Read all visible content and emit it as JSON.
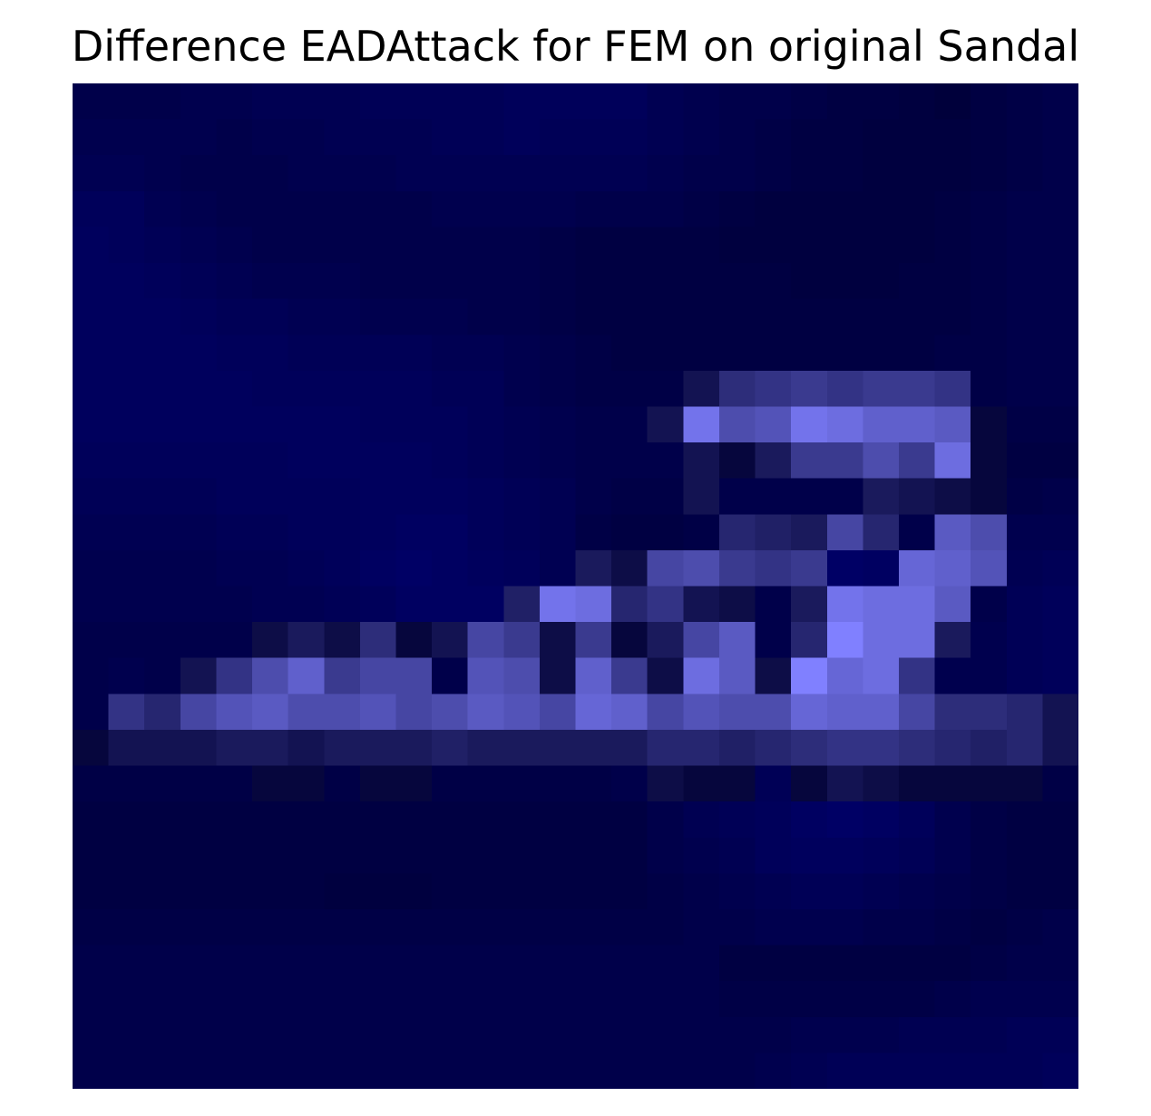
{
  "chart_data": {
    "type": "heatmap",
    "title": "Difference EADAttack for FEM on original Sandal",
    "xlabel": "",
    "ylabel": "",
    "rows": 28,
    "cols": 28,
    "axes_visible": false,
    "colorbar": false,
    "colors": {
      "dark": "#000033",
      "blue": "#000080",
      "light": "#8080ff"
    },
    "sparse_lightness": {
      "8": {
        "17": 0.15,
        "18": 0.35,
        "19": 0.4,
        "20": 0.45,
        "21": 0.4,
        "22": 0.45,
        "23": 0.45,
        "24": 0.4
      },
      "9": {
        "16": 0.15,
        "17": 0.9,
        "18": 0.6,
        "19": 0.65,
        "20": 0.9,
        "21": 0.85,
        "22": 0.75,
        "23": 0.75,
        "24": 0.7,
        "25": 0.05
      },
      "10": {
        "17": 0.15,
        "18": 0.05,
        "19": 0.2,
        "20": 0.45,
        "21": 0.45,
        "22": 0.6,
        "23": 0.45,
        "24": 0.85,
        "25": 0.05
      },
      "11": {
        "17": 0.15,
        "22": 0.2,
        "23": 0.15,
        "24": 0.1,
        "25": 0.05
      },
      "12": {
        "18": 0.3,
        "19": 0.25,
        "20": 0.2,
        "21": 0.55,
        "22": 0.3,
        "24": 0.7,
        "25": 0.6
      },
      "13": {
        "14": 0.2,
        "15": 0.1,
        "16": 0.55,
        "17": 0.6,
        "18": 0.45,
        "19": 0.4,
        "20": 0.45,
        "23": 0.8,
        "24": 0.75,
        "25": 0.65
      },
      "14": {
        "12": 0.25,
        "13": 0.9,
        "14": 0.85,
        "15": 0.3,
        "16": 0.4,
        "17": 0.15,
        "18": 0.1,
        "20": 0.2,
        "21": 0.9,
        "22": 0.85,
        "23": 0.85,
        "24": 0.7
      },
      "15": {
        "5": 0.1,
        "6": 0.2,
        "7": 0.1,
        "8": 0.35,
        "9": 0.05,
        "10": 0.15,
        "11": 0.55,
        "12": 0.45,
        "13": 0.1,
        "14": 0.45,
        "15": 0.05,
        "16": 0.2,
        "17": 0.55,
        "18": 0.7,
        "20": 0.3,
        "21": 1.0,
        "22": 0.85,
        "23": 0.85,
        "24": 0.2
      },
      "16": {
        "3": 0.15,
        "4": 0.4,
        "5": 0.6,
        "6": 0.75,
        "7": 0.45,
        "8": 0.55,
        "9": 0.55,
        "11": 0.65,
        "12": 0.6,
        "13": 0.1,
        "14": 0.75,
        "15": 0.45,
        "16": 0.1,
        "17": 0.85,
        "18": 0.7,
        "19": 0.1,
        "20": 1.0,
        "21": 0.8,
        "22": 0.85,
        "23": 0.4
      },
      "17": {
        "1": 0.4,
        "2": 0.3,
        "3": 0.55,
        "4": 0.65,
        "5": 0.7,
        "6": 0.6,
        "7": 0.6,
        "8": 0.65,
        "9": 0.55,
        "10": 0.6,
        "11": 0.7,
        "12": 0.65,
        "13": 0.55,
        "14": 0.8,
        "15": 0.75,
        "16": 0.55,
        "17": 0.65,
        "18": 0.6,
        "19": 0.6,
        "20": 0.8,
        "21": 0.75,
        "22": 0.75,
        "23": 0.55,
        "24": 0.35,
        "25": 0.35,
        "26": 0.3,
        "27": 0.15
      },
      "18": {
        "0": 0.05,
        "1": 0.15,
        "2": 0.15,
        "3": 0.15,
        "4": 0.2,
        "5": 0.2,
        "6": 0.15,
        "7": 0.2,
        "8": 0.2,
        "9": 0.2,
        "10": 0.25,
        "11": 0.2,
        "12": 0.2,
        "13": 0.2,
        "14": 0.2,
        "15": 0.2,
        "16": 0.3,
        "17": 0.3,
        "18": 0.25,
        "19": 0.3,
        "20": 0.35,
        "21": 0.4,
        "22": 0.4,
        "23": 0.35,
        "24": 0.3,
        "25": 0.25,
        "26": 0.3,
        "27": 0.15
      },
      "19": {
        "5": 0.05,
        "6": 0.05,
        "8": 0.05,
        "9": 0.05,
        "16": 0.1,
        "17": 0.05,
        "18": 0.05,
        "20": 0.05,
        "21": 0.15,
        "22": 0.1,
        "23": 0.05,
        "24": 0.05,
        "25": 0.05,
        "26": 0.05
      }
    },
    "blue_intensity": [
      [
        0.3,
        0.3,
        0.3,
        0.35,
        0.35,
        0.4,
        0.4,
        0.4,
        0.45,
        0.45,
        0.45,
        0.45,
        0.5,
        0.5,
        0.5,
        0.5,
        0.4,
        0.35,
        0.3,
        0.3,
        0.25,
        0.2,
        0.2,
        0.15,
        0.1,
        0.2,
        0.25,
        0.3
      ],
      [
        0.35,
        0.35,
        0.35,
        0.35,
        0.3,
        0.35,
        0.35,
        0.4,
        0.4,
        0.4,
        0.45,
        0.45,
        0.5,
        0.45,
        0.45,
        0.45,
        0.4,
        0.35,
        0.3,
        0.25,
        0.2,
        0.2,
        0.15,
        0.15,
        0.15,
        0.2,
        0.25,
        0.3
      ],
      [
        0.4,
        0.4,
        0.35,
        0.3,
        0.3,
        0.3,
        0.35,
        0.35,
        0.35,
        0.4,
        0.4,
        0.4,
        0.4,
        0.4,
        0.4,
        0.4,
        0.35,
        0.3,
        0.3,
        0.25,
        0.2,
        0.2,
        0.15,
        0.15,
        0.15,
        0.2,
        0.25,
        0.3
      ],
      [
        0.5,
        0.5,
        0.4,
        0.35,
        0.3,
        0.3,
        0.3,
        0.3,
        0.3,
        0.3,
        0.35,
        0.35,
        0.35,
        0.35,
        0.3,
        0.3,
        0.3,
        0.25,
        0.2,
        0.15,
        0.15,
        0.15,
        0.15,
        0.15,
        0.2,
        0.25,
        0.3,
        0.3
      ],
      [
        0.55,
        0.5,
        0.45,
        0.4,
        0.35,
        0.3,
        0.3,
        0.3,
        0.3,
        0.3,
        0.3,
        0.3,
        0.3,
        0.25,
        0.2,
        0.2,
        0.2,
        0.2,
        0.15,
        0.15,
        0.15,
        0.15,
        0.15,
        0.15,
        0.2,
        0.25,
        0.3,
        0.3
      ],
      [
        0.55,
        0.55,
        0.5,
        0.45,
        0.4,
        0.35,
        0.35,
        0.35,
        0.3,
        0.3,
        0.3,
        0.3,
        0.3,
        0.25,
        0.2,
        0.2,
        0.2,
        0.2,
        0.2,
        0.2,
        0.15,
        0.15,
        0.15,
        0.2,
        0.2,
        0.25,
        0.3,
        0.3
      ],
      [
        0.55,
        0.55,
        0.55,
        0.5,
        0.45,
        0.45,
        0.4,
        0.4,
        0.35,
        0.35,
        0.35,
        0.3,
        0.3,
        0.25,
        0.2,
        0.2,
        0.2,
        0.2,
        0.2,
        0.2,
        0.2,
        0.2,
        0.2,
        0.2,
        0.2,
        0.25,
        0.3,
        0.3
      ],
      [
        0.55,
        0.55,
        0.55,
        0.55,
        0.5,
        0.5,
        0.45,
        0.45,
        0.45,
        0.45,
        0.4,
        0.4,
        0.35,
        0.3,
        0.25,
        0.2,
        0.2,
        0.2,
        0.2,
        0.2,
        0.2,
        0.2,
        0.2,
        0.2,
        0.25,
        0.25,
        0.3,
        0.3
      ],
      [
        0.55,
        0.55,
        0.55,
        0.55,
        0.55,
        0.5,
        0.5,
        0.5,
        0.5,
        0.5,
        0.45,
        0.45,
        0.35,
        0.3,
        0.25,
        0.25,
        0.25,
        0.25,
        0.2,
        0.2,
        0.2,
        0.2,
        0.2,
        0.2,
        0.25,
        0.25,
        0.3,
        0.3
      ],
      [
        0.55,
        0.55,
        0.55,
        0.55,
        0.55,
        0.55,
        0.55,
        0.55,
        0.5,
        0.5,
        0.5,
        0.45,
        0.4,
        0.35,
        0.3,
        0.3,
        0.25,
        0.25,
        0.25,
        0.25,
        0.2,
        0.2,
        0.2,
        0.2,
        0.2,
        0.2,
        0.25,
        0.25
      ],
      [
        0.5,
        0.5,
        0.5,
        0.5,
        0.5,
        0.5,
        0.55,
        0.55,
        0.55,
        0.55,
        0.5,
        0.45,
        0.4,
        0.35,
        0.3,
        0.3,
        0.3,
        0.3,
        0.25,
        0.25,
        0.25,
        0.25,
        0.25,
        0.25,
        0.2,
        0.15,
        0.2,
        0.2
      ],
      [
        0.45,
        0.45,
        0.45,
        0.45,
        0.5,
        0.5,
        0.5,
        0.5,
        0.55,
        0.55,
        0.55,
        0.5,
        0.45,
        0.4,
        0.3,
        0.25,
        0.25,
        0.3,
        0.3,
        0.3,
        0.3,
        0.3,
        0.25,
        0.2,
        0.15,
        0.2,
        0.25,
        0.3
      ],
      [
        0.4,
        0.4,
        0.4,
        0.4,
        0.45,
        0.45,
        0.5,
        0.5,
        0.55,
        0.6,
        0.6,
        0.5,
        0.45,
        0.4,
        0.25,
        0.2,
        0.2,
        0.25,
        0.3,
        0.3,
        0.3,
        0.3,
        0.3,
        0.3,
        0.25,
        0.3,
        0.35,
        0.35
      ],
      [
        0.35,
        0.35,
        0.35,
        0.35,
        0.4,
        0.4,
        0.45,
        0.5,
        0.6,
        0.65,
        0.6,
        0.55,
        0.5,
        0.4,
        0.3,
        0.3,
        0.3,
        0.3,
        0.3,
        0.3,
        0.3,
        0.65,
        0.6,
        0.3,
        0.3,
        0.3,
        0.4,
        0.45
      ],
      [
        0.35,
        0.35,
        0.35,
        0.35,
        0.35,
        0.4,
        0.4,
        0.45,
        0.5,
        0.6,
        0.6,
        0.6,
        0.55,
        0.5,
        0.3,
        0.3,
        0.3,
        0.3,
        0.3,
        0.3,
        0.5,
        0.3,
        0.3,
        0.3,
        0.3,
        0.3,
        0.45,
        0.5
      ],
      [
        0.3,
        0.3,
        0.3,
        0.3,
        0.3,
        0.3,
        0.3,
        0.3,
        0.3,
        0.3,
        0.4,
        0.3,
        0.3,
        0.3,
        0.3,
        0.3,
        0.3,
        0.3,
        0.3,
        0.3,
        0.3,
        0.3,
        0.3,
        0.3,
        0.3,
        0.35,
        0.45,
        0.5
      ],
      [
        0.3,
        0.35,
        0.3,
        0.3,
        0.3,
        0.3,
        0.3,
        0.3,
        0.3,
        0.3,
        0.3,
        0.3,
        0.3,
        0.3,
        0.3,
        0.3,
        0.3,
        0.3,
        0.3,
        0.3,
        0.3,
        0.3,
        0.3,
        0.3,
        0.35,
        0.35,
        0.45,
        0.5
      ],
      [
        0.3,
        0.3,
        0.3,
        0.3,
        0.3,
        0.3,
        0.3,
        0.3,
        0.3,
        0.3,
        0.3,
        0.3,
        0.3,
        0.3,
        0.3,
        0.3,
        0.3,
        0.3,
        0.3,
        0.3,
        0.3,
        0.3,
        0.3,
        0.3,
        0.3,
        0.3,
        0.3,
        0.3
      ],
      [
        0.3,
        0.3,
        0.3,
        0.3,
        0.3,
        0.3,
        0.3,
        0.3,
        0.3,
        0.3,
        0.3,
        0.3,
        0.3,
        0.3,
        0.3,
        0.3,
        0.3,
        0.3,
        0.3,
        0.3,
        0.3,
        0.3,
        0.3,
        0.3,
        0.3,
        0.3,
        0.3,
        0.3
      ],
      [
        0.25,
        0.25,
        0.25,
        0.25,
        0.25,
        0.25,
        0.25,
        0.25,
        0.25,
        0.25,
        0.25,
        0.25,
        0.25,
        0.25,
        0.25,
        0.3,
        0.35,
        0.4,
        0.4,
        0.45,
        0.5,
        0.55,
        0.45,
        0.4,
        0.35,
        0.3,
        0.25,
        0.25
      ],
      [
        0.2,
        0.2,
        0.2,
        0.2,
        0.2,
        0.2,
        0.2,
        0.2,
        0.2,
        0.2,
        0.2,
        0.2,
        0.2,
        0.2,
        0.2,
        0.2,
        0.3,
        0.4,
        0.45,
        0.5,
        0.6,
        0.65,
        0.6,
        0.5,
        0.35,
        0.25,
        0.2,
        0.2
      ],
      [
        0.2,
        0.2,
        0.2,
        0.2,
        0.2,
        0.2,
        0.2,
        0.2,
        0.2,
        0.2,
        0.2,
        0.2,
        0.2,
        0.2,
        0.2,
        0.2,
        0.3,
        0.35,
        0.4,
        0.5,
        0.55,
        0.55,
        0.5,
        0.45,
        0.35,
        0.25,
        0.2,
        0.2
      ],
      [
        0.2,
        0.2,
        0.2,
        0.2,
        0.2,
        0.2,
        0.2,
        0.15,
        0.15,
        0.15,
        0.2,
        0.2,
        0.2,
        0.2,
        0.2,
        0.2,
        0.25,
        0.3,
        0.35,
        0.4,
        0.45,
        0.45,
        0.4,
        0.35,
        0.3,
        0.25,
        0.2,
        0.2
      ],
      [
        0.25,
        0.25,
        0.25,
        0.25,
        0.25,
        0.25,
        0.25,
        0.25,
        0.25,
        0.25,
        0.25,
        0.25,
        0.25,
        0.25,
        0.25,
        0.25,
        0.25,
        0.3,
        0.3,
        0.35,
        0.35,
        0.35,
        0.3,
        0.3,
        0.25,
        0.2,
        0.25,
        0.3
      ],
      [
        0.3,
        0.3,
        0.3,
        0.3,
        0.3,
        0.3,
        0.3,
        0.3,
        0.3,
        0.3,
        0.3,
        0.3,
        0.3,
        0.3,
        0.3,
        0.3,
        0.3,
        0.3,
        0.2,
        0.2,
        0.2,
        0.2,
        0.2,
        0.2,
        0.2,
        0.25,
        0.3,
        0.3
      ],
      [
        0.3,
        0.3,
        0.3,
        0.3,
        0.3,
        0.3,
        0.3,
        0.3,
        0.3,
        0.3,
        0.3,
        0.3,
        0.3,
        0.3,
        0.3,
        0.3,
        0.3,
        0.3,
        0.25,
        0.25,
        0.25,
        0.25,
        0.25,
        0.25,
        0.3,
        0.35,
        0.35,
        0.35
      ],
      [
        0.3,
        0.3,
        0.3,
        0.3,
        0.3,
        0.3,
        0.3,
        0.3,
        0.3,
        0.3,
        0.3,
        0.3,
        0.3,
        0.3,
        0.3,
        0.3,
        0.3,
        0.3,
        0.3,
        0.3,
        0.35,
        0.35,
        0.35,
        0.4,
        0.4,
        0.4,
        0.45,
        0.45
      ],
      [
        0.3,
        0.3,
        0.3,
        0.3,
        0.3,
        0.3,
        0.3,
        0.3,
        0.3,
        0.3,
        0.3,
        0.3,
        0.3,
        0.3,
        0.3,
        0.3,
        0.3,
        0.3,
        0.3,
        0.35,
        0.4,
        0.45,
        0.45,
        0.45,
        0.45,
        0.45,
        0.45,
        0.5
      ]
    ]
  }
}
